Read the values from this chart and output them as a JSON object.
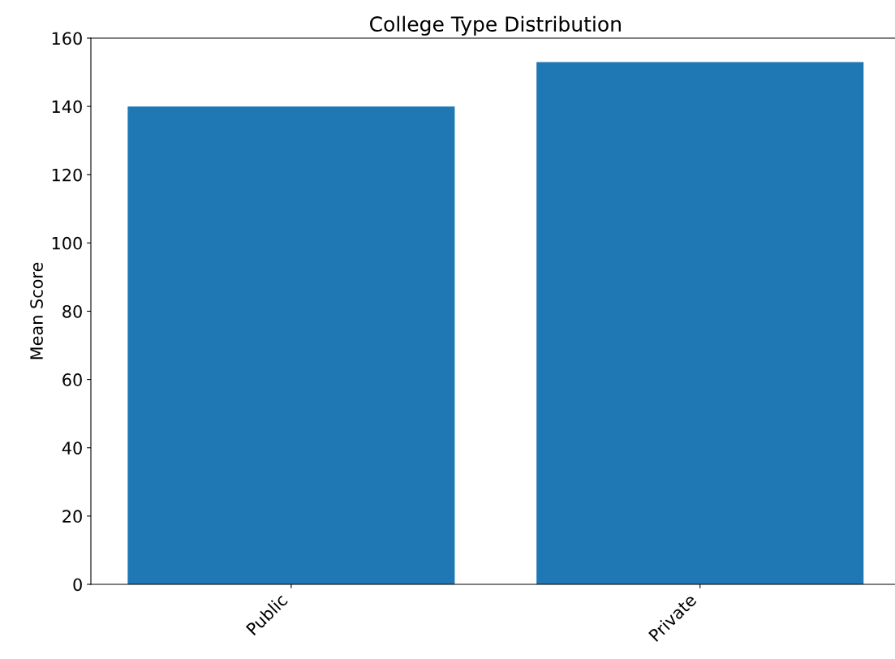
{
  "chart_data": {
    "type": "bar",
    "title": "College Type Distribution",
    "ylabel": "Mean Score",
    "categories": [
      "Public",
      "Private"
    ],
    "values": [
      140,
      153
    ],
    "color": "#1f77b4",
    "ylim": [
      0,
      160
    ],
    "yticks": [
      0,
      20,
      40,
      60,
      80,
      100,
      120,
      140,
      160
    ],
    "grid": false
  }
}
